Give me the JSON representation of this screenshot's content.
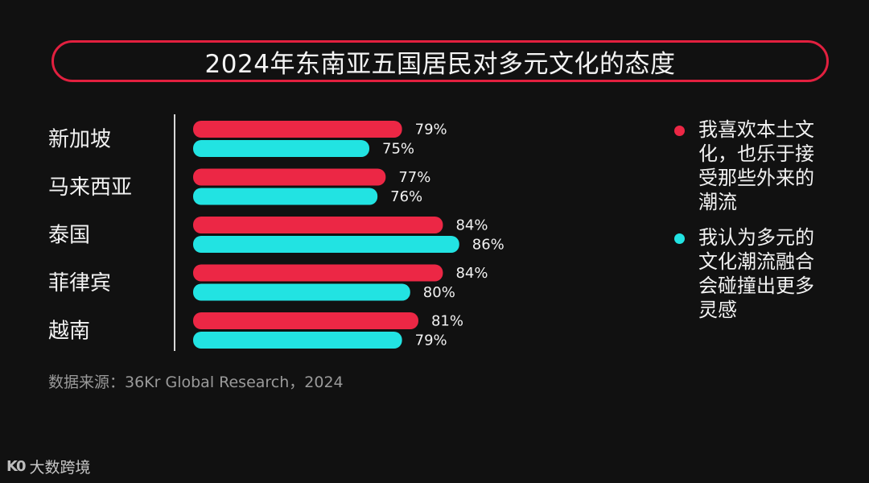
{
  "title": "2024年东南亚五国居民对多元文化的态度",
  "source": "数据来源：36Kr Global Research，2024",
  "brand": {
    "logo": "K0",
    "name": "大数跨境"
  },
  "legend": [
    {
      "label": "我喜欢本土文化，也乐于接受那些外来的潮流",
      "color": "#ec2745"
    },
    {
      "label": "我认为多元的文化潮流融合会碰撞出更多灵感",
      "color": "#22e3e2"
    }
  ],
  "chart_data": {
    "type": "bar",
    "orientation": "horizontal",
    "categories": [
      "新加坡",
      "马来西亚",
      "泰国",
      "菲律宾",
      "越南"
    ],
    "series": [
      {
        "name": "我喜欢本土文化，也乐于接受那些外来的潮流",
        "color": "#ec2745",
        "values": [
          79,
          77,
          84,
          84,
          81
        ]
      },
      {
        "name": "我认为多元的文化潮流融合会碰撞出更多灵感",
        "color": "#22e3e2",
        "values": [
          75,
          76,
          86,
          80,
          79
        ]
      }
    ],
    "value_suffix": "%",
    "title": "2024年东南亚五国居民对多元文化的态度",
    "grid": false
  }
}
